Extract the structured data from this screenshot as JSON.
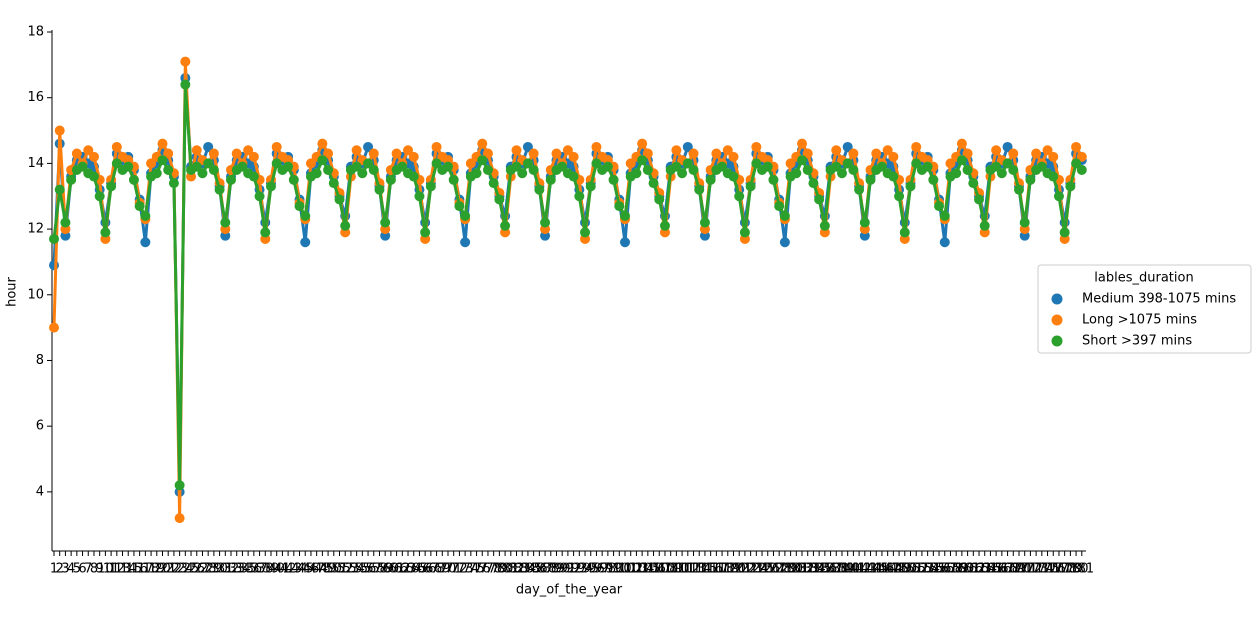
{
  "chart_data": {
    "type": "pointplot",
    "xlabel": "day_of_the_year",
    "ylabel": "hour",
    "legend_title": "lables_duration",
    "legend": "center right",
    "categories": [
      "1",
      "2",
      "3",
      "4",
      "5",
      "6",
      "7",
      "8",
      "9",
      "10",
      "11",
      "12",
      "13",
      "14",
      "15",
      "16",
      "17",
      "18",
      "19",
      "20",
      "21",
      "22",
      "23",
      "24",
      "25",
      "26",
      "27",
      "28",
      "29",
      "30",
      "31",
      "32",
      "33",
      "34",
      "35",
      "36",
      "37",
      "38",
      "39",
      "40",
      "41",
      "42",
      "43",
      "44",
      "45",
      "46",
      "47",
      "48",
      "49",
      "50",
      "51",
      "52",
      "53",
      "54",
      "55",
      "56",
      "57",
      "58",
      "59",
      "60",
      "61",
      "62",
      "63",
      "64",
      "65",
      "66",
      "67",
      "68",
      "69",
      "70",
      "71",
      "72",
      "73",
      "74",
      "75",
      "76",
      "77",
      "78",
      "79",
      "80",
      "81",
      "82",
      "83",
      "84",
      "85",
      "86",
      "87",
      "88",
      "89",
      "90",
      "91",
      "92",
      "93",
      "94",
      "95",
      "96",
      "97",
      "98",
      "99",
      "100",
      "101",
      "102",
      "103",
      "104",
      "105",
      "106",
      "107",
      "108",
      "109",
      "110",
      "111",
      "112",
      "113",
      "114",
      "115",
      "116",
      "117",
      "118",
      "119",
      "120",
      "121",
      "122",
      "123",
      "124",
      "125",
      "126",
      "127",
      "128",
      "129",
      "130",
      "131",
      "132",
      "133",
      "134",
      "135",
      "136",
      "137",
      "138",
      "139",
      "140",
      "141",
      "142",
      "143",
      "144",
      "145",
      "146",
      "147",
      "148",
      "149",
      "150",
      "151",
      "152",
      "153",
      "154",
      "155",
      "156",
      "157",
      "158",
      "159",
      "160",
      "161",
      "162",
      "163",
      "164",
      "165",
      "166",
      "167",
      "168",
      "169",
      "170",
      "171",
      "172",
      "173",
      "174",
      "175",
      "176",
      "177",
      "178",
      "179",
      "180",
      "181"
    ],
    "ylim": [
      2.2,
      18
    ],
    "yticks": [
      4,
      6,
      8,
      10,
      12,
      14,
      16,
      18
    ],
    "series": [
      {
        "name": "Medium 398-1075 mins",
        "color": "#1f77b4",
        "values": [
          10.9,
          14.6,
          11.8,
          13.6,
          14.1,
          14.2,
          14.0,
          13.9,
          13.2,
          12.2,
          13.4,
          14.3,
          14.1,
          14.2,
          13.8,
          12.9,
          11.6,
          13.7,
          14.0,
          14.4,
          14.1,
          13.6,
          4.0,
          16.6,
          13.9,
          14.2,
          14.0,
          14.5,
          14.1,
          13.3,
          11.8,
          13.6,
          14.1,
          14.2,
          14.0,
          13.9,
          13.2,
          12.2,
          13.4,
          14.3,
          14.1,
          14.2,
          13.8,
          12.9,
          11.6,
          13.7,
          14.0,
          14.4,
          14.1,
          13.6,
          13.0,
          12.4,
          13.9,
          14.2,
          14.0,
          14.5,
          14.1,
          13.3,
          11.8,
          13.6,
          14.1,
          14.2,
          14.0,
          13.9,
          13.2,
          12.2,
          13.4,
          14.3,
          14.1,
          14.2,
          13.8,
          12.9,
          11.6,
          13.7,
          14.0,
          14.4,
          14.1,
          13.6,
          13.0,
          12.4,
          13.9,
          14.2,
          14.0,
          14.5,
          14.1,
          13.3,
          11.8,
          13.6,
          14.1,
          14.2,
          14.0,
          13.9,
          13.2,
          12.2,
          13.4,
          14.3,
          14.1,
          14.2,
          13.8,
          12.9,
          11.6,
          13.7,
          14.0,
          14.4,
          14.1,
          13.6,
          13.0,
          12.4,
          13.9,
          14.2,
          14.0,
          14.5,
          14.1,
          13.3,
          11.8,
          13.6,
          14.1,
          14.2,
          14.0,
          13.9,
          13.2,
          12.2,
          13.4,
          14.3,
          14.1,
          14.2,
          13.8,
          12.9,
          11.6,
          13.7,
          14.0,
          14.4,
          14.1,
          13.6,
          13.0,
          12.4,
          13.9,
          14.2,
          14.0,
          14.5,
          14.1,
          13.3,
          11.8,
          13.6,
          14.1,
          14.2,
          14.0,
          13.9,
          13.2,
          12.2,
          13.4,
          14.3,
          14.1,
          14.2,
          13.8,
          12.9,
          11.6,
          13.7,
          14.0,
          14.4,
          14.1,
          13.6,
          13.0,
          12.4,
          13.9,
          14.2,
          14.0,
          14.5,
          14.1,
          13.3,
          11.8,
          13.6,
          14.1,
          14.2,
          14.0,
          13.9,
          13.2,
          12.2,
          13.4,
          14.3,
          14.1
        ]
      },
      {
        "name": "Long >1075 mins",
        "color": "#ff7f0e",
        "values": [
          9.0,
          15.0,
          12.0,
          13.8,
          14.3,
          14.0,
          14.4,
          14.2,
          13.5,
          11.7,
          13.5,
          14.5,
          14.2,
          14.1,
          13.9,
          12.8,
          12.3,
          14.0,
          14.2,
          14.6,
          14.3,
          13.7,
          3.2,
          17.1,
          13.6,
          14.4,
          14.1,
          14.0,
          14.3,
          13.4,
          12.0,
          13.8,
          14.3,
          14.0,
          14.4,
          14.2,
          13.5,
          11.7,
          13.5,
          14.5,
          14.2,
          14.1,
          13.9,
          12.8,
          12.3,
          14.0,
          14.2,
          14.6,
          14.3,
          13.7,
          13.1,
          11.9,
          13.6,
          14.4,
          14.1,
          14.0,
          14.3,
          13.4,
          12.0,
          13.8,
          14.3,
          14.0,
          14.4,
          14.2,
          13.5,
          11.7,
          13.5,
          14.5,
          14.2,
          14.1,
          13.9,
          12.8,
          12.3,
          14.0,
          14.2,
          14.6,
          14.3,
          13.7,
          13.1,
          11.9,
          13.6,
          14.4,
          14.1,
          14.0,
          14.3,
          13.4,
          12.0,
          13.8,
          14.3,
          14.0,
          14.4,
          14.2,
          13.5,
          11.7,
          13.5,
          14.5,
          14.2,
          14.1,
          13.9,
          12.8,
          12.3,
          14.0,
          14.2,
          14.6,
          14.3,
          13.7,
          13.1,
          11.9,
          13.6,
          14.4,
          14.1,
          14.0,
          14.3,
          13.4,
          12.0,
          13.8,
          14.3,
          14.0,
          14.4,
          14.2,
          13.5,
          11.7,
          13.5,
          14.5,
          14.2,
          14.1,
          13.9,
          12.8,
          12.3,
          14.0,
          14.2,
          14.6,
          14.3,
          13.7,
          13.1,
          11.9,
          13.6,
          14.4,
          14.1,
          14.0,
          14.3,
          13.4,
          12.0,
          13.8,
          14.3,
          14.0,
          14.4,
          14.2,
          13.5,
          11.7,
          13.5,
          14.5,
          14.2,
          14.1,
          13.9,
          12.8,
          12.3,
          14.0,
          14.2,
          14.6,
          14.3,
          13.7,
          13.1,
          11.9,
          13.6,
          14.4,
          14.1,
          14.0,
          14.3,
          13.4,
          12.0,
          13.8,
          14.3,
          14.0,
          14.4,
          14.2,
          13.5,
          11.7,
          13.5,
          14.5,
          14.2
        ]
      },
      {
        "name": "Short >397 mins",
        "color": "#2ca02c",
        "values": [
          11.7,
          13.2,
          12.2,
          13.5,
          13.8,
          13.9,
          13.7,
          13.6,
          13.0,
          11.9,
          13.3,
          14.0,
          13.8,
          13.9,
          13.5,
          12.7,
          12.4,
          13.6,
          13.7,
          14.1,
          13.8,
          13.4,
          4.2,
          16.4,
          13.8,
          13.9,
          13.7,
          14.0,
          13.8,
          13.2,
          12.2,
          13.5,
          13.8,
          13.9,
          13.7,
          13.6,
          13.0,
          11.9,
          13.3,
          14.0,
          13.8,
          13.9,
          13.5,
          12.7,
          12.4,
          13.6,
          13.7,
          14.1,
          13.8,
          13.4,
          12.9,
          12.1,
          13.8,
          13.9,
          13.7,
          14.0,
          13.8,
          13.2,
          12.2,
          13.5,
          13.8,
          13.9,
          13.7,
          13.6,
          13.0,
          11.9,
          13.3,
          14.0,
          13.8,
          13.9,
          13.5,
          12.7,
          12.4,
          13.6,
          13.7,
          14.1,
          13.8,
          13.4,
          12.9,
          12.1,
          13.8,
          13.9,
          13.7,
          14.0,
          13.8,
          13.2,
          12.2,
          13.5,
          13.8,
          13.9,
          13.7,
          13.6,
          13.0,
          11.9,
          13.3,
          14.0,
          13.8,
          13.9,
          13.5,
          12.7,
          12.4,
          13.6,
          13.7,
          14.1,
          13.8,
          13.4,
          12.9,
          12.1,
          13.8,
          13.9,
          13.7,
          14.0,
          13.8,
          13.2,
          12.2,
          13.5,
          13.8,
          13.9,
          13.7,
          13.6,
          13.0,
          11.9,
          13.3,
          14.0,
          13.8,
          13.9,
          13.5,
          12.7,
          12.4,
          13.6,
          13.7,
          14.1,
          13.8,
          13.4,
          12.9,
          12.1,
          13.8,
          13.9,
          13.7,
          14.0,
          13.8,
          13.2,
          12.2,
          13.5,
          13.8,
          13.9,
          13.7,
          13.6,
          13.0,
          11.9,
          13.3,
          14.0,
          13.8,
          13.9,
          13.5,
          12.7,
          12.4,
          13.6,
          13.7,
          14.1,
          13.8,
          13.4,
          12.9,
          12.1,
          13.8,
          13.9,
          13.7,
          14.0,
          13.8,
          13.2,
          12.2,
          13.5,
          13.8,
          13.9,
          13.7,
          13.6,
          13.0,
          11.9,
          13.3,
          14.0,
          13.8
        ]
      }
    ]
  }
}
